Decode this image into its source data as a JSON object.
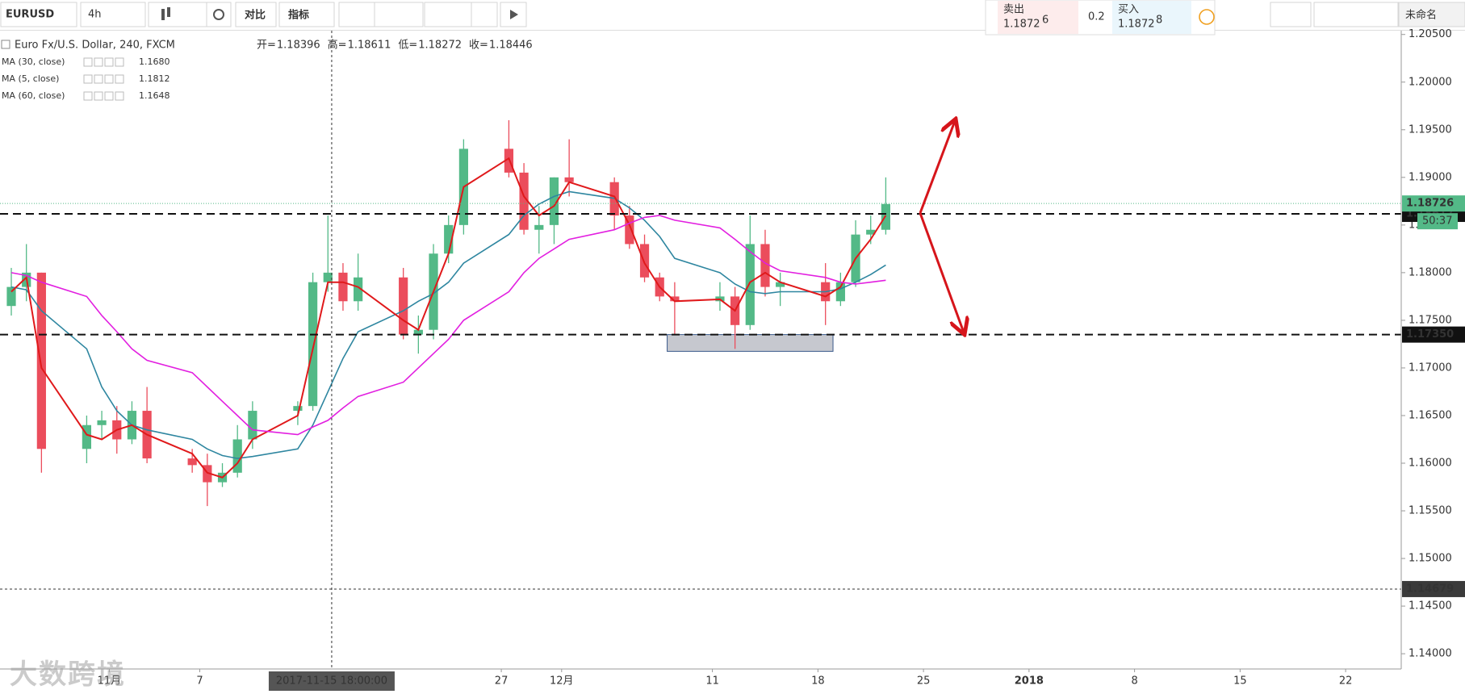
{
  "toolbar": {
    "symbol": "EURUSD",
    "interval": "4h",
    "compare": "对比",
    "indicators": "指标",
    "sell_label": "卖出",
    "sell_price": "1.1872",
    "sell_pip": "6",
    "spread": "0.2",
    "buy_label": "买入",
    "buy_price": "1.1872",
    "buy_pip": "8",
    "layout_name": "未命名"
  },
  "watermark": "大数跨境",
  "chart_data": {
    "type": "candlestick",
    "title": "Euro Fx/U.S. Dollar, 240, FXCM",
    "ohlc_legend": [
      {
        "name": "开=",
        "value": 1.18396
      },
      {
        "name": "高=",
        "value": 1.18611
      },
      {
        "name": "低=",
        "value": 1.18272
      },
      {
        "name": "收=",
        "value": 1.18446
      }
    ],
    "up_color": "#53b987",
    "down_color": "#eb4d5c",
    "x": [
      "2017-10-25",
      "2017-10-26",
      "2017-10-27",
      "2017-10-30",
      "2017-10-31",
      "2017-11-01",
      "2017-11-02",
      "2017-11-03",
      "2017-11-06",
      "2017-11-07",
      "2017-11-08",
      "2017-11-09",
      "2017-11-10",
      "2017-11-13",
      "2017-11-14",
      "2017-11-15",
      "2017-11-16",
      "2017-11-17",
      "2017-11-20",
      "2017-11-21",
      "2017-11-22",
      "2017-11-23",
      "2017-11-24",
      "2017-11-27",
      "2017-11-28",
      "2017-11-29",
      "2017-11-30",
      "2017-12-01",
      "2017-12-04",
      "2017-12-05",
      "2017-12-06",
      "2017-12-07",
      "2017-12-08",
      "2017-12-11",
      "2017-12-12",
      "2017-12-13",
      "2017-12-14",
      "2017-12-15",
      "2017-12-18",
      "2017-12-19",
      "2017-12-20",
      "2017-12-21",
      "2017-12-22"
    ],
    "open": [
      1.1765,
      1.1785,
      1.18,
      1.1615,
      1.164,
      1.1645,
      1.1625,
      1.1655,
      1.1605,
      1.1598,
      1.158,
      1.159,
      1.1625,
      1.1655,
      1.166,
      1.179,
      1.18,
      1.177,
      1.1795,
      1.1735,
      1.174,
      1.182,
      1.185,
      1.193,
      1.1905,
      1.1845,
      1.185,
      1.19,
      1.1895,
      1.186,
      1.183,
      1.1795,
      1.1775,
      1.177,
      1.1775,
      1.1745,
      1.183,
      1.1785,
      1.179,
      1.177,
      1.179,
      1.184,
      1.1845
    ],
    "high": [
      1.1805,
      1.183,
      1.18,
      1.165,
      1.1655,
      1.166,
      1.1665,
      1.168,
      1.1615,
      1.161,
      1.16,
      1.164,
      1.1665,
      1.1665,
      1.18,
      1.186,
      1.181,
      1.182,
      1.1805,
      1.1755,
      1.183,
      1.186,
      1.194,
      1.196,
      1.1915,
      1.187,
      1.19,
      1.194,
      1.19,
      1.187,
      1.184,
      1.18,
      1.179,
      1.179,
      1.1785,
      1.186,
      1.1845,
      1.18,
      1.181,
      1.18,
      1.1855,
      1.186,
      1.19
    ],
    "low": [
      1.1755,
      1.177,
      1.159,
      1.16,
      1.1625,
      1.161,
      1.162,
      1.16,
      1.159,
      1.1555,
      1.1575,
      1.1585,
      1.1615,
      1.164,
      1.1655,
      1.178,
      1.176,
      1.176,
      1.173,
      1.1715,
      1.173,
      1.181,
      1.184,
      1.19,
      1.184,
      1.182,
      1.183,
      1.188,
      1.1845,
      1.1825,
      1.179,
      1.177,
      1.1735,
      1.176,
      1.172,
      1.174,
      1.1775,
      1.1765,
      1.1745,
      1.1765,
      1.1785,
      1.183,
      1.184
    ],
    "close": [
      1.1785,
      1.18,
      1.1615,
      1.164,
      1.1645,
      1.1625,
      1.1655,
      1.1605,
      1.1598,
      1.158,
      1.159,
      1.1625,
      1.1655,
      1.166,
      1.179,
      1.18,
      1.177,
      1.1795,
      1.1735,
      1.174,
      1.182,
      1.185,
      1.193,
      1.1905,
      1.1845,
      1.185,
      1.19,
      1.1895,
      1.186,
      1.183,
      1.1795,
      1.1775,
      1.177,
      1.1775,
      1.1745,
      1.183,
      1.1785,
      1.179,
      1.177,
      1.179,
      1.184,
      1.1845,
      1.1872
    ],
    "series": [
      {
        "name": "MA (30, close)",
        "color": "#2e86a0",
        "legend_value": {
          "value": 1.168,
          "label": "1.1680"
        },
        "values": [
          1.1785,
          1.1782,
          1.176,
          1.172,
          1.168,
          1.1655,
          1.164,
          1.1635,
          1.1625,
          1.1615,
          1.1608,
          1.1605,
          1.1607,
          1.1615,
          1.164,
          1.1675,
          1.171,
          1.1738,
          1.176,
          1.177,
          1.1778,
          1.179,
          1.181,
          1.184,
          1.186,
          1.1872,
          1.188,
          1.1885,
          1.1878,
          1.1868,
          1.1855,
          1.1838,
          1.1815,
          1.18,
          1.1788,
          1.178,
          1.1778,
          1.178,
          1.178,
          1.1783,
          1.179,
          1.1798,
          1.1808
        ]
      },
      {
        "name": "MA (5, close)",
        "color": "#e0191b",
        "legend_value": {
          "value": 1.1812,
          "label": "1.1812"
        },
        "values": [
          1.178,
          1.1795,
          1.17,
          1.163,
          1.1625,
          1.1635,
          1.164,
          1.163,
          1.161,
          1.159,
          1.1585,
          1.16,
          1.1625,
          1.165,
          1.172,
          1.179,
          1.179,
          1.1785,
          1.175,
          1.174,
          1.178,
          1.182,
          1.189,
          1.192,
          1.188,
          1.186,
          1.187,
          1.1895,
          1.188,
          1.185,
          1.181,
          1.1785,
          1.177,
          1.1772,
          1.176,
          1.179,
          1.18,
          1.179,
          1.1775,
          1.1785,
          1.1815,
          1.1835,
          1.186
        ]
      },
      {
        "name": "MA (60, close)",
        "color": "#e21fe0",
        "legend_value": {
          "value": 1.1648,
          "label": "1.1648"
        },
        "values": [
          1.18,
          1.1797,
          1.179,
          1.1775,
          1.1755,
          1.1738,
          1.172,
          1.1708,
          1.1695,
          1.168,
          1.1665,
          1.165,
          1.1635,
          1.163,
          1.1638,
          1.1645,
          1.1658,
          1.167,
          1.1685,
          1.17,
          1.1715,
          1.173,
          1.175,
          1.178,
          1.18,
          1.1815,
          1.1825,
          1.1835,
          1.1845,
          1.1852,
          1.1858,
          1.186,
          1.1855,
          1.1847,
          1.1835,
          1.1822,
          1.181,
          1.1802,
          1.1795,
          1.179,
          1.1788,
          1.179,
          1.1792
        ]
      }
    ],
    "xlim": [
      "2017-10-24 18:00",
      "2018-01-25 16:30"
    ],
    "xticks": [
      {
        "value": "2017-11-01",
        "label": "11月"
      },
      {
        "value": "2017-11-07",
        "label": "7"
      },
      {
        "value": "2017-11-27",
        "label": "27"
      },
      {
        "value": "2017-12-01",
        "label": "12月"
      },
      {
        "value": "2017-12-11",
        "label": "11"
      },
      {
        "value": "2017-12-18",
        "label": "18"
      },
      {
        "value": "2017-12-25",
        "label": "25"
      },
      {
        "value": "2018-01-01",
        "label": "2018"
      },
      {
        "value": "2018-01-08",
        "label": "8"
      },
      {
        "value": "2018-01-15",
        "label": "15"
      },
      {
        "value": "2018-01-22",
        "label": "22"
      }
    ],
    "ylim": [
      1.1384,
      1.2054
    ],
    "yticks": [
      {
        "value": 1.14,
        "label": "1.14000"
      },
      {
        "value": 1.145,
        "label": "1.14500"
      },
      {
        "value": 1.15,
        "label": "1.15000"
      },
      {
        "value": 1.155,
        "label": "1.15500"
      },
      {
        "value": 1.16,
        "label": "1.16000"
      },
      {
        "value": 1.165,
        "label": "1.16500"
      },
      {
        "value": 1.17,
        "label": "1.17000"
      },
      {
        "value": 1.175,
        "label": "1.17500"
      },
      {
        "value": 1.18,
        "label": "1.18000"
      },
      {
        "value": 1.185,
        "label": "1.18500"
      },
      {
        "value": 1.19,
        "label": "1.19000"
      },
      {
        "value": 1.195,
        "label": "1.19500"
      },
      {
        "value": 1.2,
        "label": "1.20000"
      },
      {
        "value": 1.205,
        "label": "1.20500"
      }
    ],
    "grid": false,
    "levels": [
      1.18617,
      {
        "value": 1.1735,
        "label": "1.17350"
      }
    ],
    "zone": {
      "x": [
        "2017-12-08",
        "2017-12-19"
      ],
      "y": [
        1.17174,
        1.1735
      ]
    },
    "last_price": 1.18726,
    "countdown": "50:37",
    "crosshair": {
      "x": "2017-11-15 18:00:00",
      "y": 1.14679
    }
  }
}
